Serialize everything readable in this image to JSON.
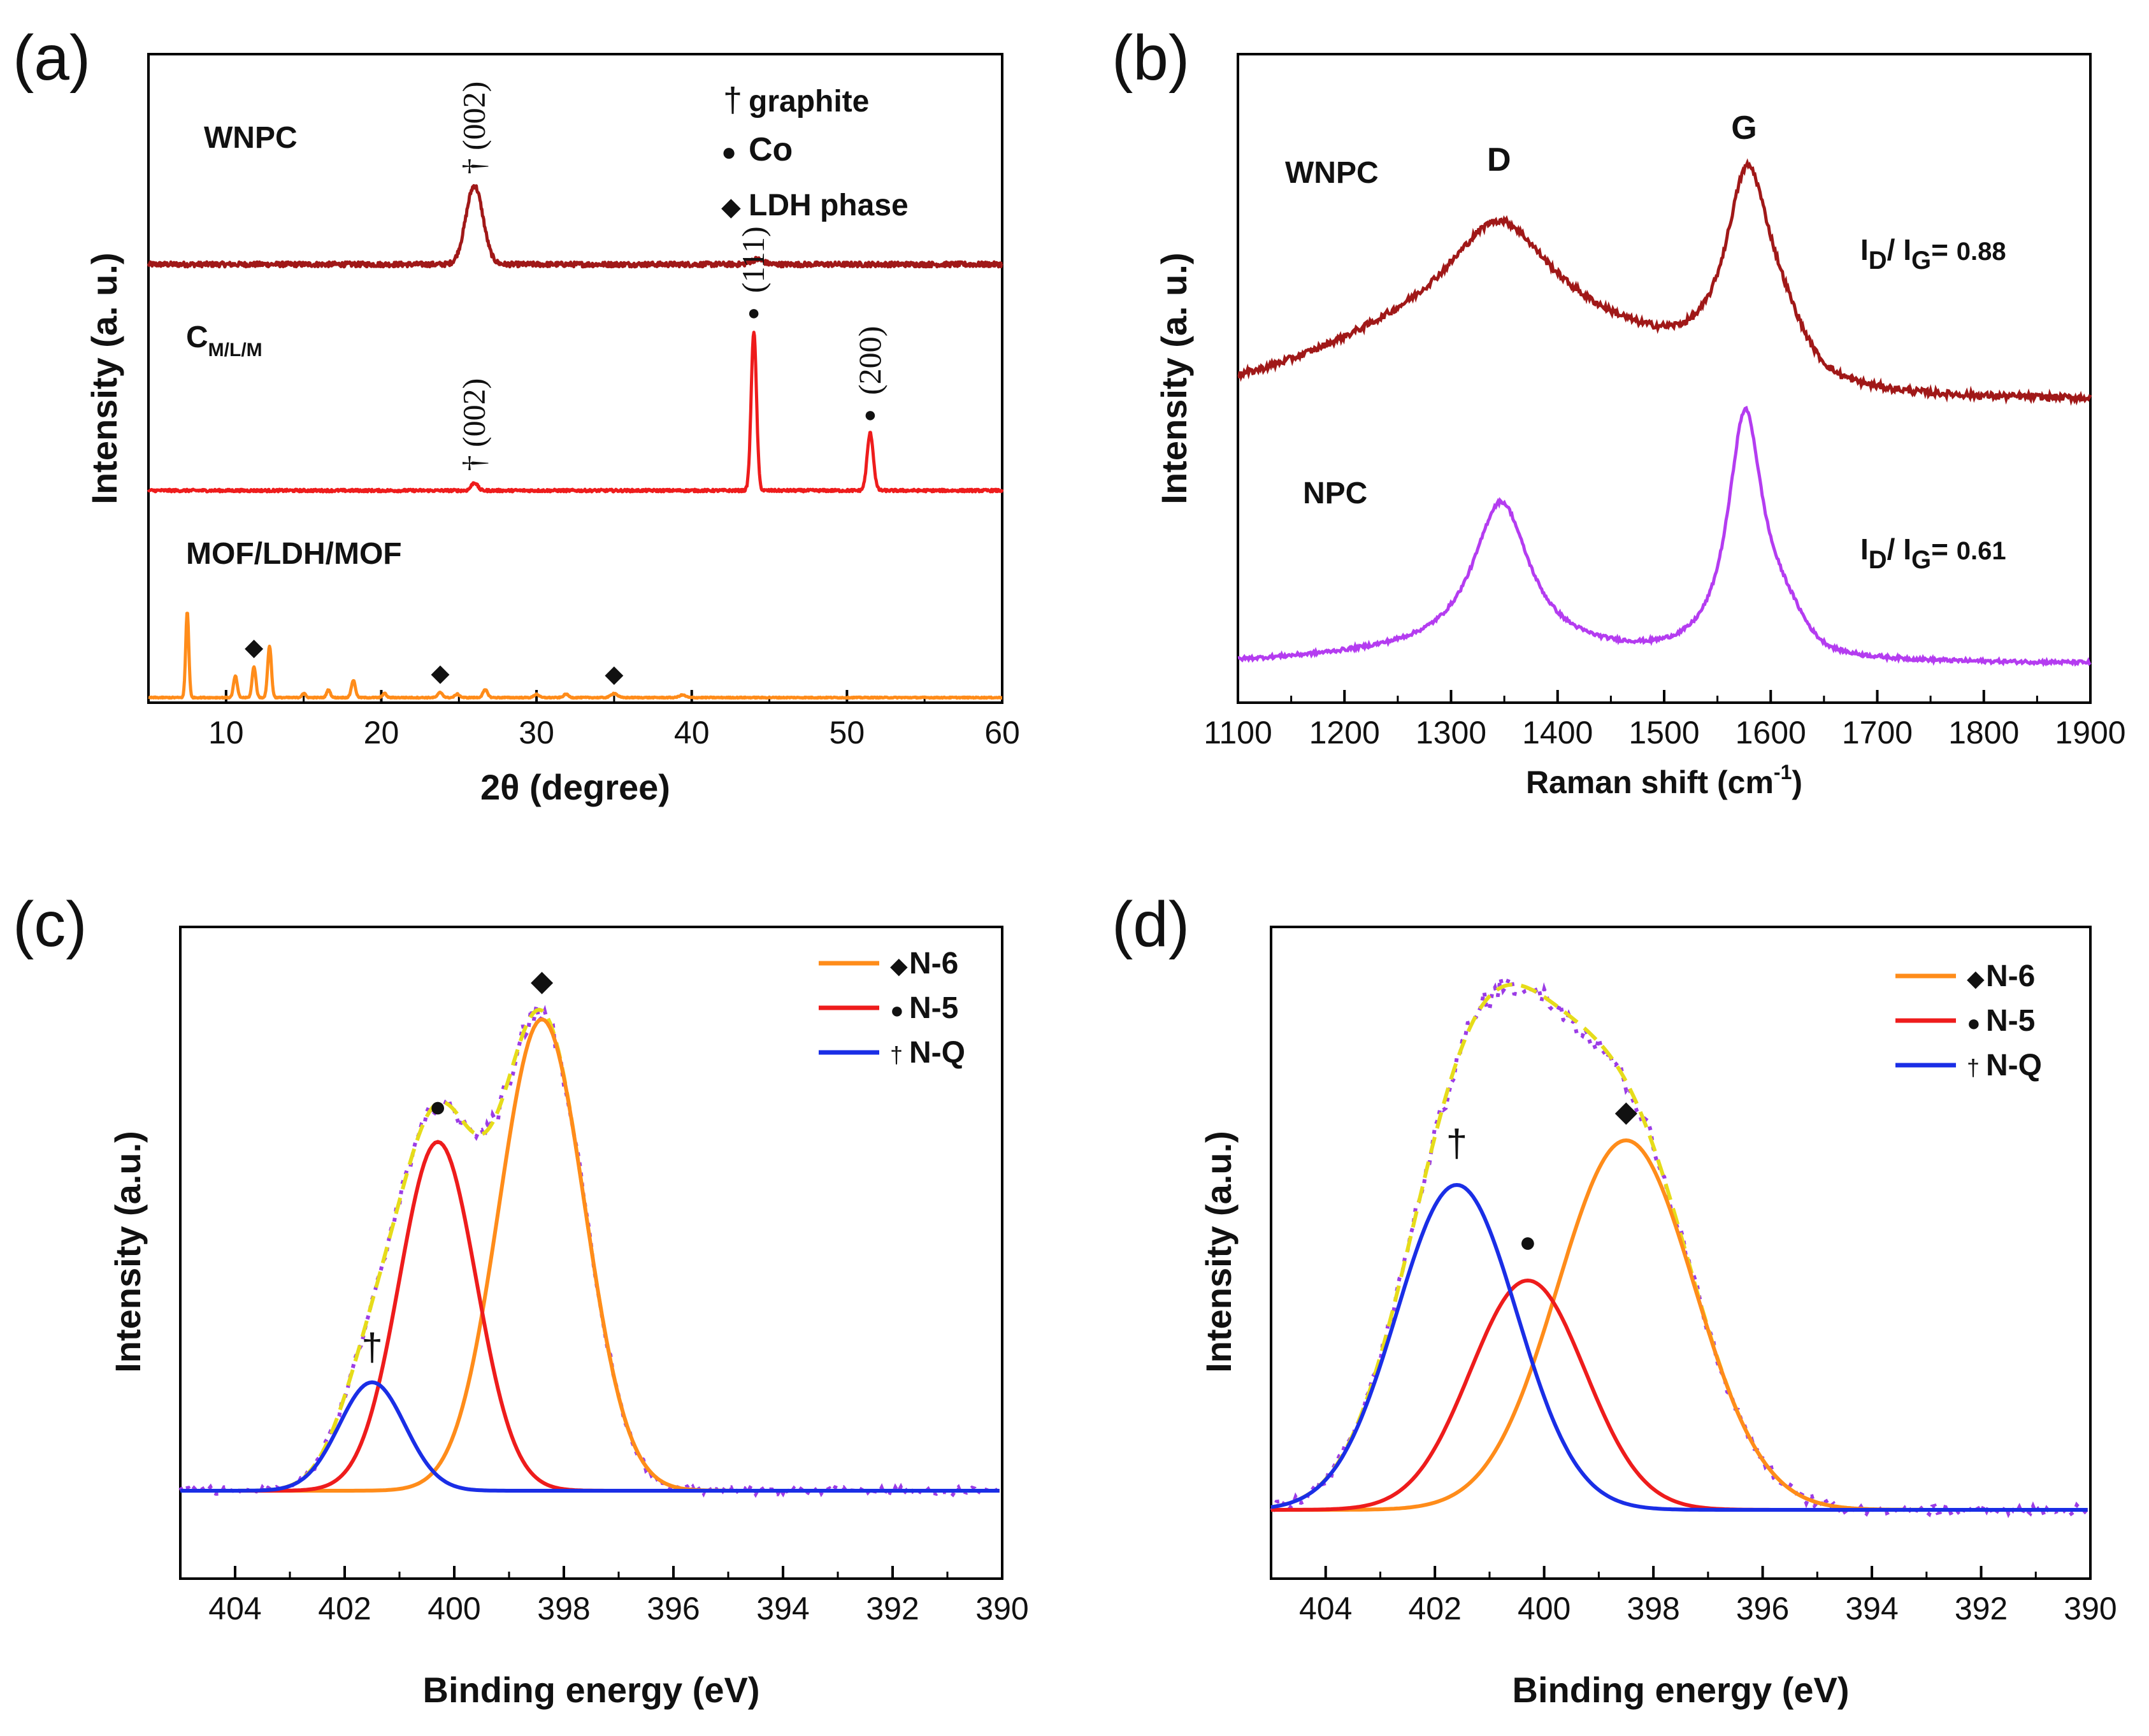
{
  "chart_data": [
    {
      "panel": "(a)",
      "type": "line",
      "xlabel": "2θ (degree)",
      "ylabel": "Intensity (a. u.)",
      "xlim": [
        5,
        60
      ],
      "xticks": [
        10,
        20,
        30,
        40,
        50,
        60
      ],
      "colors": {
        "WNPC": "#a01818",
        "C_M/L/M": "#ee1c1c",
        "MOF/LDH/MOF": "#ff8c1a"
      },
      "series": [
        {
          "name": "WNPC",
          "label": "WNPC",
          "peaks": [
            {
              "x": 26.0,
              "height": 0.95,
              "width": 0.55
            },
            {
              "x": 44.2,
              "height": 0.06,
              "width": 0.4
            }
          ],
          "noise": 0.03
        },
        {
          "name": "C_M/L/M",
          "label_main": "C",
          "label_sub": "M/L/M",
          "peaks": [
            {
              "x": 26.0,
              "height": 0.05,
              "width": 0.2
            },
            {
              "x": 44.0,
              "height": 1.0,
              "width": 0.17
            },
            {
              "x": 51.5,
              "height": 0.36,
              "width": 0.2
            }
          ],
          "noise": 0.008
        },
        {
          "name": "MOF/LDH/MOF",
          "label": "MOF/LDH/MOF",
          "peaks": [
            {
              "x": 7.5,
              "height": 1.0,
              "width": 0.1
            },
            {
              "x": 10.6,
              "height": 0.25,
              "width": 0.12
            },
            {
              "x": 11.8,
              "height": 0.36,
              "width": 0.12
            },
            {
              "x": 12.8,
              "height": 0.6,
              "width": 0.12
            },
            {
              "x": 15.0,
              "height": 0.05,
              "width": 0.12
            },
            {
              "x": 16.6,
              "height": 0.09,
              "width": 0.12
            },
            {
              "x": 18.2,
              "height": 0.2,
              "width": 0.13
            },
            {
              "x": 20.2,
              "height": 0.05,
              "width": 0.12
            },
            {
              "x": 23.8,
              "height": 0.06,
              "width": 0.15
            },
            {
              "x": 24.9,
              "height": 0.04,
              "width": 0.15
            },
            {
              "x": 26.7,
              "height": 0.09,
              "width": 0.15
            },
            {
              "x": 30.0,
              "height": 0.04,
              "width": 0.15
            },
            {
              "x": 31.9,
              "height": 0.04,
              "width": 0.15
            },
            {
              "x": 35.0,
              "height": 0.05,
              "width": 0.2
            },
            {
              "x": 39.4,
              "height": 0.03,
              "width": 0.2
            }
          ],
          "noise": 0.006
        }
      ],
      "annotations": [
        {
          "text": "† (002)",
          "x": 26.0,
          "series": "WNPC",
          "rotated": true
        },
        {
          "text": "† (002)",
          "x": 26.0,
          "series": "C_M/L/M",
          "rotated": true
        },
        {
          "text": "(111)",
          "x": 44.0,
          "series": "C_M/L/M",
          "rotated": true,
          "marker": "●"
        },
        {
          "text": "(200)",
          "x": 51.5,
          "series": "C_M/L/M",
          "rotated": true,
          "marker": "●"
        },
        {
          "text": "◆",
          "x": 11.8,
          "series": "MOF/LDH/MOF"
        },
        {
          "text": "◆",
          "x": 23.8,
          "series": "MOF/LDH/MOF"
        },
        {
          "text": "◆",
          "x": 35.0,
          "series": "MOF/LDH/MOF"
        }
      ],
      "legend": [
        {
          "symbol": "†",
          "text": "graphite"
        },
        {
          "symbol": "●",
          "text": "Co"
        },
        {
          "symbol": "◆",
          "text": "LDH phase"
        }
      ]
    },
    {
      "panel": "(b)",
      "type": "line",
      "xlabel_main": "Raman shift (cm",
      "xlabel_sup": "-1",
      "xlabel_end": ")",
      "ylabel": "Intensity (a. u.)",
      "xlim": [
        1100,
        1900
      ],
      "xticks": [
        1100,
        1200,
        1300,
        1400,
        1500,
        1600,
        1700,
        1800,
        1900
      ],
      "colors": {
        "WNPC": "#a01818",
        "NPC": "#b43cf0"
      },
      "series": [
        {
          "name": "WNPC",
          "label": "WNPC",
          "ratio": "0.88"
        },
        {
          "name": "NPC",
          "label": "NPC",
          "ratio": "0.61"
        }
      ],
      "peak_labels": [
        {
          "text": "D",
          "x": 1345
        },
        {
          "text": "G",
          "x": 1575
        }
      ],
      "ratio_prefix": "I",
      "ratio_sub_d": "D",
      "ratio_sub_g": "G",
      "ratio_mid": "/ I",
      "ratio_eq": "= "
    },
    {
      "panel": "(c)",
      "type": "line",
      "xlabel": "Binding energy (eV)",
      "ylabel": "Intensity (a.u.)",
      "xlim": [
        405,
        390
      ],
      "xticks": [
        404,
        402,
        400,
        398,
        396,
        394,
        392,
        390
      ],
      "components": [
        {
          "name": "N-6",
          "symbol": "◆",
          "center": 398.4,
          "height": 1.0,
          "sigma": 0.78,
          "color": "#ff8c1a"
        },
        {
          "name": "N-5",
          "symbol": "●",
          "center": 400.3,
          "height": 0.74,
          "sigma": 0.7,
          "color": "#ee1c1c"
        },
        {
          "name": "N-Q",
          "symbol": "†",
          "center": 401.5,
          "height": 0.23,
          "sigma": 0.6,
          "color": "#1a2ee6"
        }
      ],
      "envelope_color": "#e6dc1a",
      "raw_color": "#9b3ce6",
      "legend": [
        {
          "symbol": "◆",
          "text": "N-6"
        },
        {
          "symbol": "●",
          "text": "N-5"
        },
        {
          "symbol": "†",
          "text": "N-Q"
        }
      ]
    },
    {
      "panel": "(d)",
      "type": "line",
      "xlabel": "Binding energy (eV)",
      "ylabel": "Intensity (a.u.)",
      "xlim": [
        405,
        390
      ],
      "xticks": [
        404,
        402,
        400,
        398,
        396,
        394,
        392,
        390
      ],
      "components": [
        {
          "name": "N-6",
          "symbol": "◆",
          "center": 398.5,
          "height": 0.58,
          "sigma": 1.25,
          "color": "#ff8c1a"
        },
        {
          "name": "N-5",
          "symbol": "●",
          "center": 400.3,
          "height": 0.36,
          "sigma": 1.05,
          "color": "#ee1c1c"
        },
        {
          "name": "N-Q",
          "symbol": "†",
          "center": 401.6,
          "height": 0.51,
          "sigma": 1.1,
          "color": "#1a2ee6"
        }
      ],
      "envelope_color": "#e6dc1a",
      "raw_color": "#9b3ce6",
      "legend": [
        {
          "symbol": "◆",
          "text": "N-6"
        },
        {
          "symbol": "●",
          "text": " N-5"
        },
        {
          "symbol": "†",
          "text": "N-Q"
        }
      ]
    }
  ]
}
